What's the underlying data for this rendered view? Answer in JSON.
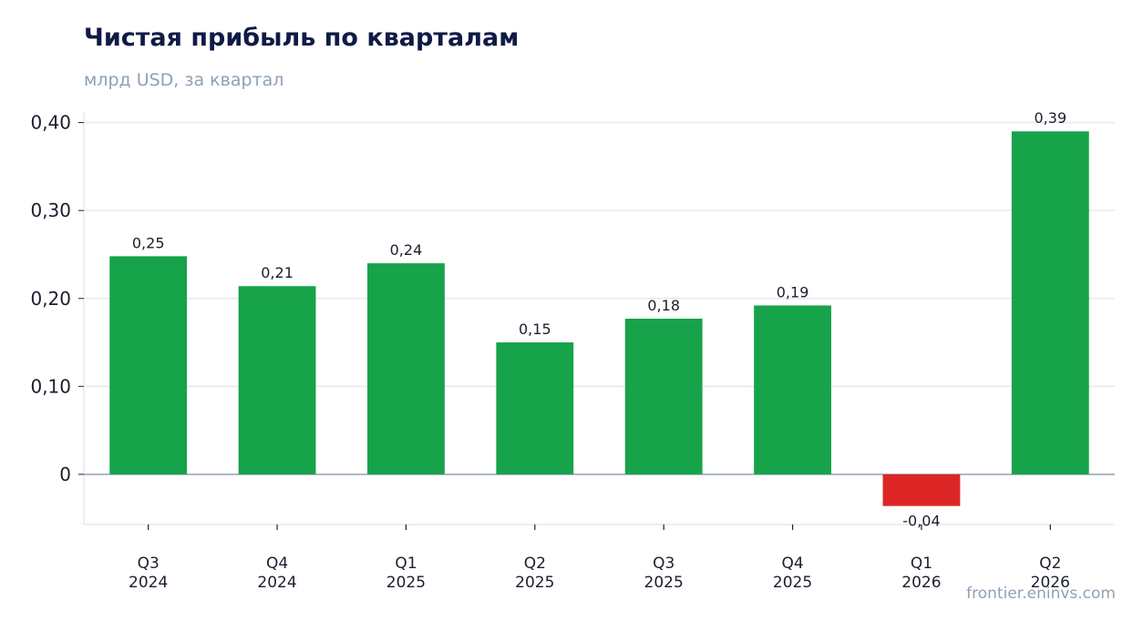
{
  "chart_data": {
    "type": "bar",
    "title": "Чистая прибыль по кварталам",
    "subtitle": "млрд USD, за квартал",
    "categories": [
      [
        "Q3",
        "2024"
      ],
      [
        "Q4",
        "2024"
      ],
      [
        "Q1",
        "2025"
      ],
      [
        "Q2",
        "2025"
      ],
      [
        "Q3",
        "2025"
      ],
      [
        "Q4",
        "2025"
      ],
      [
        "Q1",
        "2026"
      ],
      [
        "Q2",
        "2026"
      ]
    ],
    "values": [
      0.248,
      0.214,
      0.24,
      0.15,
      0.177,
      0.192,
      -0.036,
      0.39
    ],
    "value_labels": [
      "0,25",
      "0,21",
      "0,24",
      "0,15",
      "0,18",
      "0,19",
      "-0,04",
      "0,39"
    ],
    "yticks": [
      0,
      0.1,
      0.2,
      0.3,
      0.4
    ],
    "ytick_labels": [
      "0",
      "0,10",
      "0,20",
      "0,30",
      "0,40"
    ],
    "ylim": [
      -0.057,
      0.412
    ],
    "grid": true,
    "colors": {
      "positive": "#17a34a",
      "negative": "#dc2626",
      "grid": "#e5e9ee",
      "zero_line": "#8fa0b4"
    }
  },
  "source": "frontier.eninvs.com"
}
